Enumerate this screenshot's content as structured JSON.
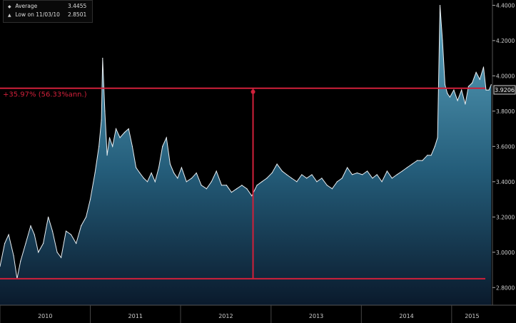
{
  "chart_data": {
    "type": "area",
    "title": "",
    "xlabel": "",
    "ylabel": "",
    "ylim": [
      2.7,
      4.43
    ],
    "xlim": [
      "2010-01-01",
      "2015-06-15"
    ],
    "y_ticks": [
      "2.8000",
      "3.0000",
      "3.2000",
      "3.4000",
      "3.6000",
      "3.8000",
      "4.0000",
      "4.2000",
      "4.4000"
    ],
    "x_ticks": [
      "2010",
      "2011",
      "2012",
      "2013",
      "2014",
      "2015"
    ],
    "grid": false,
    "series": [
      {
        "x": [
          "2010-01-01",
          "2010-01-20",
          "2010-02-05",
          "2010-02-25",
          "2010-03-11",
          "2010-03-25",
          "2010-04-15",
          "2010-05-05",
          "2010-05-20",
          "2010-06-05",
          "2010-06-25",
          "2010-07-15",
          "2010-08-01",
          "2010-08-20",
          "2010-09-05",
          "2010-09-25",
          "2010-10-15",
          "2010-11-05",
          "2010-11-25",
          "2010-12-15",
          "2011-01-01",
          "2011-01-20",
          "2011-02-05",
          "2011-02-15",
          "2011-02-20",
          "2011-03-01",
          "2011-03-10",
          "2011-03-20",
          "2011-04-01",
          "2011-04-15",
          "2011-05-01",
          "2011-05-20",
          "2011-06-05",
          "2011-06-20",
          "2011-07-05",
          "2011-07-20",
          "2011-08-05",
          "2011-08-20",
          "2011-09-05",
          "2011-09-20",
          "2011-10-05",
          "2011-10-20",
          "2011-11-05",
          "2011-11-20",
          "2011-12-05",
          "2011-12-20",
          "2012-01-05",
          "2012-01-25",
          "2012-02-15",
          "2012-03-05",
          "2012-03-25",
          "2012-04-15",
          "2012-05-05",
          "2012-05-25",
          "2012-06-15",
          "2012-07-05",
          "2012-07-25",
          "2012-08-15",
          "2012-09-05",
          "2012-09-25",
          "2012-10-15",
          "2012-11-05",
          "2012-11-25",
          "2012-12-15",
          "2013-01-05",
          "2013-01-25",
          "2013-02-15",
          "2013-03-05",
          "2013-03-25",
          "2013-04-15",
          "2013-05-05",
          "2013-05-25",
          "2013-06-15",
          "2013-07-05",
          "2013-07-25",
          "2013-08-15",
          "2013-09-05",
          "2013-09-25",
          "2013-10-15",
          "2013-11-05",
          "2013-11-25",
          "2013-12-15",
          "2014-01-05",
          "2014-01-25",
          "2014-02-15",
          "2014-03-05",
          "2014-03-25",
          "2014-04-15",
          "2014-05-05",
          "2014-05-25",
          "2014-06-15",
          "2014-07-05",
          "2014-07-25",
          "2014-08-15",
          "2014-09-05",
          "2014-09-25",
          "2014-10-10",
          "2014-10-25",
          "2014-11-05",
          "2014-11-15",
          "2014-11-25",
          "2014-12-05",
          "2014-12-15",
          "2014-12-25",
          "2015-01-10",
          "2015-01-25",
          "2015-02-10",
          "2015-02-25",
          "2015-03-10",
          "2015-03-25",
          "2015-04-10",
          "2015-04-25",
          "2015-05-10",
          "2015-05-20",
          "2015-06-01",
          "2015-06-10"
        ],
        "y": [
          2.92,
          3.05,
          3.1,
          2.98,
          2.85,
          2.95,
          3.05,
          3.15,
          3.1,
          3.0,
          3.05,
          3.2,
          3.12,
          3.0,
          2.97,
          3.12,
          3.1,
          3.05,
          3.15,
          3.2,
          3.3,
          3.45,
          3.6,
          3.75,
          4.1,
          3.8,
          3.55,
          3.65,
          3.6,
          3.7,
          3.65,
          3.68,
          3.7,
          3.6,
          3.48,
          3.45,
          3.42,
          3.4,
          3.45,
          3.4,
          3.48,
          3.6,
          3.65,
          3.5,
          3.45,
          3.42,
          3.48,
          3.4,
          3.42,
          3.45,
          3.38,
          3.36,
          3.4,
          3.46,
          3.38,
          3.38,
          3.34,
          3.36,
          3.38,
          3.36,
          3.32,
          3.38,
          3.4,
          3.42,
          3.45,
          3.5,
          3.46,
          3.44,
          3.42,
          3.4,
          3.44,
          3.42,
          3.44,
          3.4,
          3.42,
          3.38,
          3.36,
          3.4,
          3.42,
          3.48,
          3.44,
          3.45,
          3.44,
          3.46,
          3.42,
          3.44,
          3.4,
          3.46,
          3.42,
          3.44,
          3.46,
          3.48,
          3.5,
          3.52,
          3.52,
          3.55,
          3.55,
          3.6,
          3.65,
          4.4,
          4.2,
          3.95,
          3.9,
          3.88,
          3.92,
          3.86,
          3.92,
          3.84,
          3.94,
          3.96,
          4.02,
          3.98,
          4.05,
          3.92,
          3.92,
          3.95
        ]
      }
    ],
    "annotations": {
      "high_level": 3.93,
      "low_level": 2.8501,
      "change_label": "+35.97% (56.33%ann.)",
      "last_value": "3.9206",
      "marker_date": "2012-10-20"
    },
    "legend": [
      {
        "marker": "◆",
        "label": "Average",
        "value": "3.4455"
      },
      {
        "marker": "▲",
        "label": "Low on 11/03/10",
        "value": "2.8501"
      }
    ],
    "colors": {
      "line": "#e8eef2",
      "area_top": "#5fa9c4",
      "area_bottom": "#0a1a2c",
      "annotation": "#d0203a",
      "background": "#000000",
      "axis_text": "#cccccc"
    }
  }
}
